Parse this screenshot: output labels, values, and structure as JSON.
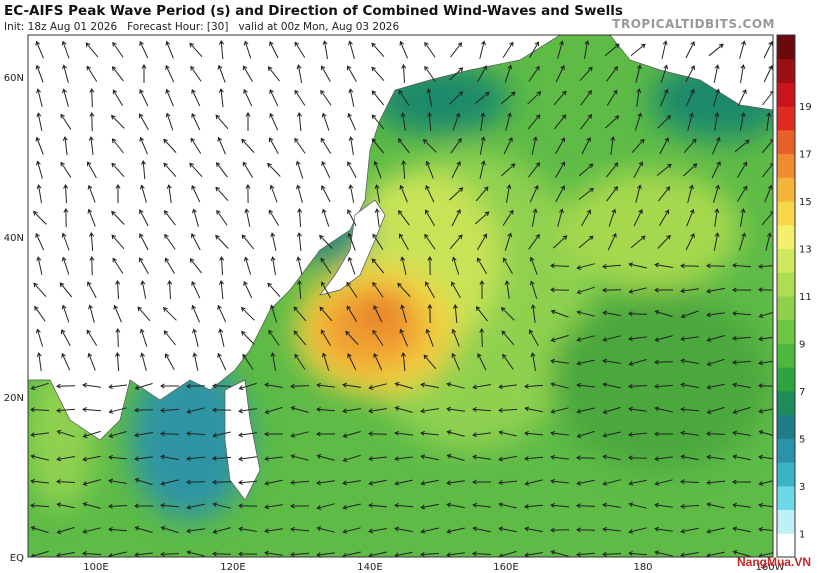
{
  "header": {
    "title": "EC-AIFS Peak Wave Period (s) and Direction of Combined Wind-Waves and Swells",
    "subtitle": "Init: 18z Aug 01 2026   Forecast Hour: [30]   valid at 00z Mon, Aug 03 2026",
    "source": "TROPICALTIDBITS.COM"
  },
  "map": {
    "lat_labels": [
      "60N",
      "40N",
      "20N",
      "EQ"
    ],
    "lon_labels": [
      "100E",
      "120E",
      "140E",
      "160E",
      "180",
      "160W"
    ]
  },
  "colorbar": {
    "labels": [
      "1",
      "3",
      "5",
      "7",
      "9",
      "11",
      "13",
      "15",
      "17",
      "19"
    ]
  },
  "watermark": "NangMua.VN"
}
